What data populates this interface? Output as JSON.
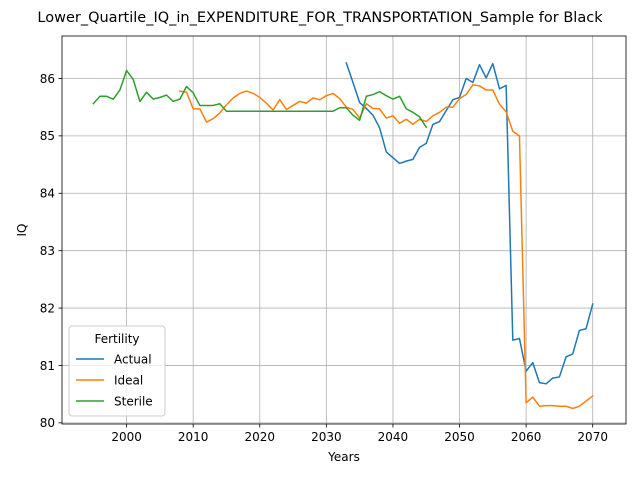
{
  "chart_data": {
    "type": "line",
    "title": "Lower_Quartile_IQ_in_EXPENDITURE_FOR_TRANSPORTATION_Sample for Black",
    "xlabel": "Years",
    "ylabel": "IQ",
    "xlim": [
      1990.3,
      2075.0
    ],
    "ylim": [
      79.98,
      86.74
    ],
    "xticks": [
      2000,
      2010,
      2020,
      2030,
      2040,
      2050,
      2060,
      2070
    ],
    "yticks": [
      80,
      81,
      82,
      83,
      84,
      85,
      86
    ],
    "grid": true,
    "legend": {
      "title": "Fertility",
      "placement": "lower-left"
    },
    "series": [
      {
        "name": "Actual",
        "color": "#1f77b4",
        "x": [
          2033,
          2034,
          2035,
          2036,
          2037,
          2038,
          2039,
          2040,
          2041,
          2042,
          2043,
          2044,
          2045,
          2046,
          2047,
          2048,
          2049,
          2050,
          2051,
          2052,
          2053,
          2054,
          2055,
          2056,
          2057,
          2058,
          2059,
          2060,
          2061,
          2062,
          2063,
          2064,
          2065,
          2066,
          2067,
          2068,
          2069,
          2070
        ],
        "y": [
          86.27,
          85.93,
          85.58,
          85.48,
          85.36,
          85.14,
          84.72,
          84.62,
          84.52,
          84.56,
          84.59,
          84.8,
          84.87,
          85.2,
          85.25,
          85.44,
          85.63,
          85.67,
          86.0,
          85.93,
          86.24,
          86.01,
          86.26,
          85.82,
          85.88,
          81.44,
          81.47,
          80.9,
          81.05,
          80.7,
          80.68,
          80.78,
          80.8,
          81.15,
          81.2,
          81.61,
          81.64,
          82.07
        ]
      },
      {
        "name": "Ideal",
        "color": "#ff7f0e",
        "x": [
          2008,
          2009,
          2010,
          2011,
          2012,
          2013,
          2014,
          2015,
          2016,
          2017,
          2018,
          2019,
          2020,
          2021,
          2022,
          2023,
          2024,
          2025,
          2026,
          2027,
          2028,
          2029,
          2030,
          2031,
          2032,
          2033,
          2034,
          2035,
          2036,
          2037,
          2038,
          2039,
          2040,
          2041,
          2042,
          2043,
          2044,
          2045,
          2046,
          2047,
          2048,
          2049,
          2050,
          2051,
          2052,
          2053,
          2054,
          2055,
          2056,
          2057,
          2058,
          2059,
          2060,
          2061,
          2062,
          2063,
          2064,
          2065,
          2066,
          2067,
          2068,
          2069,
          2070
        ],
        "y": [
          85.78,
          85.76,
          85.47,
          85.47,
          85.24,
          85.3,
          85.4,
          85.54,
          85.66,
          85.74,
          85.78,
          85.74,
          85.67,
          85.57,
          85.45,
          85.63,
          85.46,
          85.53,
          85.6,
          85.57,
          85.66,
          85.63,
          85.7,
          85.74,
          85.65,
          85.5,
          85.46,
          85.31,
          85.56,
          85.48,
          85.47,
          85.31,
          85.35,
          85.22,
          85.29,
          85.2,
          85.29,
          85.25,
          85.35,
          85.41,
          85.5,
          85.5,
          85.65,
          85.72,
          85.89,
          85.87,
          85.8,
          85.8,
          85.55,
          85.42,
          85.08,
          85.0,
          80.35,
          80.45,
          80.29,
          80.3,
          80.3,
          80.29,
          80.29,
          80.25,
          80.29,
          80.38,
          80.47
        ]
      },
      {
        "name": "Sterile",
        "color": "#2ca02c",
        "x": [
          1995,
          1996,
          1997,
          1998,
          1999,
          2000,
          2001,
          2002,
          2003,
          2004,
          2005,
          2006,
          2007,
          2008,
          2009,
          2010,
          2011,
          2012,
          2013,
          2014,
          2015,
          2016,
          2017,
          2018,
          2019,
          2020,
          2021,
          2022,
          2023,
          2024,
          2025,
          2026,
          2027,
          2028,
          2029,
          2030,
          2031,
          2032,
          2033,
          2034,
          2035,
          2036,
          2037,
          2038,
          2039,
          2040,
          2041,
          2042,
          2043,
          2044,
          2045
        ],
        "y": [
          85.56,
          85.69,
          85.69,
          85.64,
          85.8,
          86.14,
          85.98,
          85.6,
          85.76,
          85.64,
          85.67,
          85.71,
          85.6,
          85.64,
          85.86,
          85.75,
          85.53,
          85.53,
          85.53,
          85.56,
          85.43,
          85.43,
          85.43,
          85.43,
          85.43,
          85.43,
          85.43,
          85.43,
          85.43,
          85.43,
          85.43,
          85.43,
          85.43,
          85.43,
          85.43,
          85.43,
          85.43,
          85.49,
          85.49,
          85.36,
          85.27,
          85.69,
          85.72,
          85.77,
          85.7,
          85.64,
          85.69,
          85.47,
          85.41,
          85.33,
          85.15
        ]
      }
    ]
  }
}
